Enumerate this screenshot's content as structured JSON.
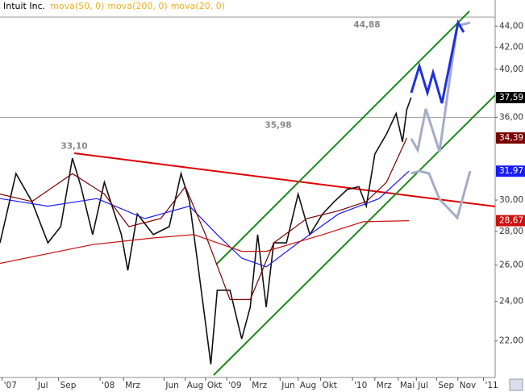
{
  "chart_data": {
    "type": "line",
    "title": "Intuit Inc.",
    "log_scale": true,
    "ylim": [
      20.3,
      46.6
    ],
    "yticks": [
      {
        "value": 22,
        "label": "22,00"
      },
      {
        "value": 24,
        "label": "24,00"
      },
      {
        "value": 26,
        "label": "26,00"
      },
      {
        "value": 28,
        "label": "28,00"
      },
      {
        "value": 30,
        "label": "30,00"
      },
      {
        "value": 36,
        "label": "36,00"
      },
      {
        "value": 40,
        "label": "40,00"
      },
      {
        "value": 42,
        "label": "42,00"
      },
      {
        "value": 44,
        "label": "44,00"
      }
    ],
    "xlim": [
      2.6,
      49.1
    ],
    "xticks": [
      {
        "value": 2.8,
        "label": "'07"
      },
      {
        "value": 6.0,
        "label": "Jul"
      },
      {
        "value": 8.1,
        "label": "Sep"
      },
      {
        "value": 12.0,
        "label": "'08"
      },
      {
        "value": 14.2,
        "label": "Mrz"
      },
      {
        "value": 18.0,
        "label": "Jun"
      },
      {
        "value": 20.0,
        "label": "Aug"
      },
      {
        "value": 21.9,
        "label": "Okt"
      },
      {
        "value": 23.9,
        "label": "'09"
      },
      {
        "value": 26.1,
        "label": "Mrz"
      },
      {
        "value": 28.9,
        "label": "Jun"
      },
      {
        "value": 30.6,
        "label": "Aug"
      },
      {
        "value": 32.7,
        "label": "Okt"
      },
      {
        "value": 35.7,
        "label": "'10"
      },
      {
        "value": 37.8,
        "label": "Mrz"
      },
      {
        "value": 40.0,
        "label": "Mai"
      },
      {
        "value": 41.7,
        "label": "Jul"
      },
      {
        "value": 43.6,
        "label": "Sep"
      },
      {
        "value": 45.6,
        "label": "Nov"
      },
      {
        "value": 48.0,
        "label": "'11"
      }
    ],
    "series": [
      {
        "color": "#111111",
        "x": [
          2.6,
          4.1,
          5.6,
          7.1,
          8.3,
          9.4,
          10.2,
          11.3,
          12.4,
          14.0,
          14.6,
          15.5,
          17.0,
          18.5,
          19.6,
          20.4,
          21.1,
          21.9,
          22.4,
          23.0,
          24.2,
          25.3,
          26.1,
          26.8,
          27.6,
          28.3,
          29.5,
          30.6,
          31.7,
          32.9,
          34.0,
          35.2,
          36.3,
          37.0,
          37.8,
          38.9,
          39.8,
          40.4,
          40.8,
          41.2
        ],
        "values": [
          27.3,
          31.8,
          29.9,
          27.3,
          28.3,
          32.9,
          30.9,
          27.8,
          31.2,
          27.8,
          25.7,
          29.1,
          27.8,
          28.3,
          31.8,
          29.9,
          26.4,
          22.9,
          20.9,
          24.6,
          24.6,
          22.1,
          23.7,
          27.8,
          23.7,
          27.3,
          27.3,
          30.4,
          27.8,
          29.1,
          29.9,
          30.7,
          30.9,
          29.6,
          33.2,
          34.7,
          36.3,
          34.1,
          36.6,
          37.59
        ]
      },
      {
        "name": "mova(50, 0)",
        "color": "#1a1aff",
        "x": [
          2.6,
          7.1,
          11.7,
          16.2,
          20.4,
          23.0,
          25.3,
          27.6,
          30.6,
          34.4,
          38.2,
          41.0
        ],
        "values": [
          30.1,
          29.6,
          30.1,
          28.8,
          29.6,
          27.8,
          26.4,
          25.9,
          27.3,
          29.1,
          30.1,
          31.97
        ]
      },
      {
        "name": "mova(200, 0)",
        "color": "#cc1111",
        "x": [
          2.6,
          11.3,
          17.0,
          20.8,
          25.3,
          27.6,
          32.9,
          36.7,
          41.0
        ],
        "values": [
          26.1,
          27.2,
          27.6,
          27.8,
          26.8,
          26.8,
          27.8,
          28.6,
          28.67
        ]
      },
      {
        "name": "mova(20, 0)",
        "color": "#7a0000",
        "x": [
          2.6,
          5.6,
          9.4,
          12.4,
          14.7,
          17.7,
          20.0,
          21.9,
          24.2,
          26.1,
          28.3,
          31.4,
          34.4,
          37.0,
          38.9,
          40.8
        ],
        "values": [
          30.4,
          29.9,
          31.8,
          30.4,
          28.3,
          28.8,
          30.9,
          27.8,
          24.1,
          24.1,
          27.3,
          28.8,
          29.3,
          29.9,
          31.2,
          34.39
        ]
      }
    ],
    "last_values": [
      {
        "value": 37.59,
        "label": "37,59",
        "color": "#000000"
      },
      {
        "value": 34.39,
        "label": "34,39",
        "color": "#7a0000"
      },
      {
        "value": 31.97,
        "label": "31,97",
        "color": "#1a1aff"
      },
      {
        "value": 28.67,
        "label": "28,67",
        "color": "#cc1111"
      }
    ],
    "levels": [
      {
        "value": 44.88,
        "label": "44,88"
      },
      {
        "value": 35.98,
        "label": "35,98"
      }
    ],
    "annotations": [
      {
        "value": 33.1,
        "label": "33,10"
      }
    ]
  }
}
